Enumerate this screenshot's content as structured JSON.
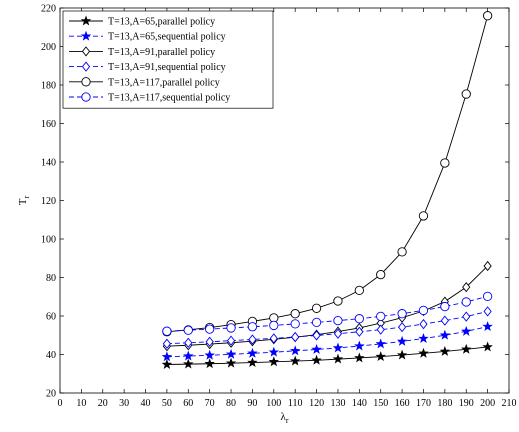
{
  "chart_data": {
    "type": "line",
    "title": "",
    "xlabel": "λ",
    "xlabel_sub": "r",
    "ylabel": "T",
    "ylabel_sub": "r",
    "xlim": [
      0,
      210
    ],
    "ylim": [
      20,
      220
    ],
    "xticks": [
      0,
      10,
      20,
      30,
      40,
      50,
      60,
      70,
      80,
      90,
      100,
      110,
      120,
      130,
      140,
      150,
      160,
      170,
      180,
      190,
      200,
      210
    ],
    "yticks": [
      20,
      40,
      60,
      80,
      100,
      120,
      140,
      160,
      180,
      200,
      220
    ],
    "grid": false,
    "legend_position": "top-left",
    "x": [
      50,
      60,
      70,
      80,
      90,
      100,
      110,
      120,
      130,
      140,
      150,
      160,
      170,
      180,
      190,
      200
    ],
    "series": [
      {
        "name": "T=13,A=65,parallel policy",
        "color": "#000000",
        "linestyle": "solid",
        "marker": "star",
        "values": [
          34.8,
          35.0,
          35.2,
          35.5,
          35.8,
          36.2,
          36.6,
          37.0,
          37.6,
          38.2,
          38.9,
          39.7,
          40.6,
          41.6,
          42.7,
          43.9
        ]
      },
      {
        "name": "T=13,A=65,sequential policy",
        "color": "#0000ff",
        "linestyle": "dashed",
        "marker": "star",
        "values": [
          38.8,
          39.2,
          39.6,
          40.1,
          40.6,
          41.2,
          41.9,
          42.6,
          43.4,
          44.4,
          45.5,
          46.8,
          48.3,
          50.0,
          52.0,
          54.5
        ]
      },
      {
        "name": "T=13,A=91,parallel policy",
        "color": "#000000",
        "linestyle": "solid",
        "marker": "diamond",
        "values": [
          44.3,
          44.8,
          45.4,
          46.1,
          46.9,
          47.9,
          49.0,
          50.3,
          51.9,
          53.8,
          56.3,
          59.1,
          62.6,
          67.5,
          75.0,
          86.0
        ]
      },
      {
        "name": "T=13,A=91,sequential policy",
        "color": "#0000ff",
        "linestyle": "dashed",
        "marker": "diamond",
        "values": [
          45.6,
          46.1,
          46.6,
          47.2,
          47.8,
          48.4,
          49.1,
          49.9,
          50.8,
          51.8,
          52.9,
          54.2,
          55.8,
          57.6,
          59.7,
          62.4
        ]
      },
      {
        "name": "T=13,A=117,parallel policy",
        "color": "#000000",
        "linestyle": "solid",
        "marker": "circle",
        "values": [
          51.8,
          52.8,
          54.0,
          55.5,
          57.2,
          59.0,
          61.2,
          64.0,
          67.8,
          73.3,
          81.5,
          93.3,
          112.0,
          139.5,
          175.3,
          216.0
        ]
      },
      {
        "name": "T=13,A=117,sequential policy",
        "color": "#0000ff",
        "linestyle": "dashed",
        "marker": "circle",
        "values": [
          52.1,
          52.6,
          53.2,
          53.8,
          54.4,
          55.1,
          55.9,
          56.7,
          57.6,
          58.6,
          59.8,
          61.2,
          62.9,
          64.9,
          67.3,
          70.2
        ]
      }
    ]
  }
}
